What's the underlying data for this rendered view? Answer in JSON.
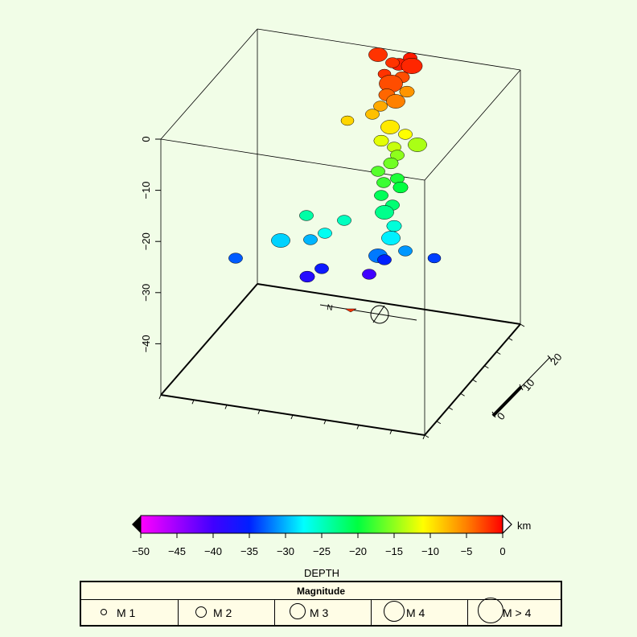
{
  "colorbar": {
    "unit_label": "km",
    "title": "DEPTH",
    "ticks": [
      "−50",
      "−45",
      "−40",
      "−35",
      "−30",
      "−25",
      "−20",
      "−15",
      "−10",
      "−5",
      "0"
    ]
  },
  "legend": {
    "title": "Magnitude",
    "items": [
      {
        "label": "M 1"
      },
      {
        "label": "M 2"
      },
      {
        "label": "M 3"
      },
      {
        "label": "M 4"
      },
      {
        "label": "M > 4"
      }
    ]
  },
  "scale_bar": {
    "ticks": [
      "0",
      "10",
      "20"
    ]
  },
  "chart_data": {
    "type": "scatter",
    "title": "",
    "zlabel": "",
    "zlim": [
      -50,
      0
    ],
    "z_ticks": [
      0,
      -10,
      -20,
      -30,
      -40
    ],
    "color_scale": {
      "variable": "depth",
      "unit": "km",
      "min": -50,
      "max": 0
    },
    "colors": {
      "shallow": "#ff2a00",
      "mid": "#00ff40",
      "deep": "#0020ff",
      "min": "#ff00ff"
    },
    "events": [
      {
        "depth": -1,
        "mag": 2.5
      },
      {
        "depth": -1,
        "mag": 2.0
      },
      {
        "depth": -1.5,
        "mag": 3.5
      },
      {
        "depth": -2,
        "mag": 3.0
      },
      {
        "depth": -2,
        "mag": 2.0
      },
      {
        "depth": -2,
        "mag": 1.8
      },
      {
        "depth": -3,
        "mag": 2.2
      },
      {
        "depth": -3,
        "mag": 4.0
      },
      {
        "depth": -4,
        "mag": 2.5
      },
      {
        "depth": -5,
        "mag": 3.0
      },
      {
        "depth": -6,
        "mag": 2.2
      },
      {
        "depth": -7,
        "mag": 2.0
      },
      {
        "depth": -8,
        "mag": 2.0
      },
      {
        "depth": -9,
        "mag": 1.8
      },
      {
        "depth": -10,
        "mag": 3.0
      },
      {
        "depth": -11,
        "mag": 2.0
      },
      {
        "depth": -12,
        "mag": 2.2
      },
      {
        "depth": -13,
        "mag": 2.0
      },
      {
        "depth": -14,
        "mag": 3.0
      },
      {
        "depth": -15,
        "mag": 2.0
      },
      {
        "depth": -16,
        "mag": 2.2
      },
      {
        "depth": -17,
        "mag": 2.0
      },
      {
        "depth": -18,
        "mag": 2.0
      },
      {
        "depth": -19,
        "mag": 2.0
      },
      {
        "depth": -20,
        "mag": 2.2
      },
      {
        "depth": -21,
        "mag": 2.0
      },
      {
        "depth": -22,
        "mag": 2.0
      },
      {
        "depth": -23,
        "mag": 3.0
      },
      {
        "depth": -24,
        "mag": 2.0
      },
      {
        "depth": -25,
        "mag": 2.0
      },
      {
        "depth": -26,
        "mag": 2.2
      },
      {
        "depth": -27,
        "mag": 2.0
      },
      {
        "depth": -28,
        "mag": 3.0
      },
      {
        "depth": -29,
        "mag": 3.0
      },
      {
        "depth": -30,
        "mag": 2.0
      },
      {
        "depth": -31,
        "mag": 2.0
      },
      {
        "depth": -32,
        "mag": 3.0
      },
      {
        "depth": -33,
        "mag": 2.0
      },
      {
        "depth": -34,
        "mag": 1.8
      },
      {
        "depth": -35,
        "mag": 2.0
      },
      {
        "depth": -36,
        "mag": 2.0
      },
      {
        "depth": -38,
        "mag": 2.2
      },
      {
        "depth": -40,
        "mag": 2.0
      }
    ]
  }
}
